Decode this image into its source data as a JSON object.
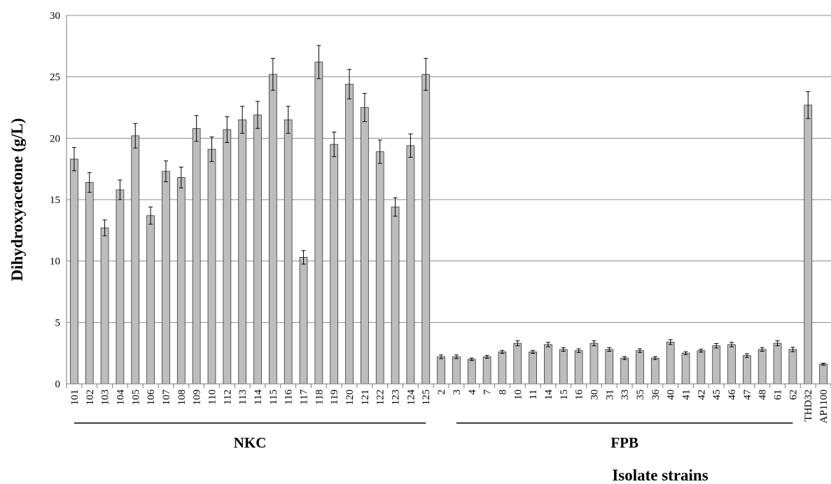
{
  "chart_data": {
    "type": "bar",
    "title": "",
    "ylabel": "Dihydroxyacetone (g/L)",
    "xlabel": "Isolate strains",
    "ylim": [
      0,
      30
    ],
    "yticks": [
      0,
      5,
      10,
      15,
      20,
      25,
      30
    ],
    "grid": true,
    "bar_color": "#bdbdbd",
    "categories": [
      "101",
      "102",
      "103",
      "104",
      "105",
      "106",
      "107",
      "108",
      "109",
      "110",
      "112",
      "113",
      "114",
      "115",
      "116",
      "117",
      "118",
      "119",
      "120",
      "121",
      "122",
      "123",
      "124",
      "125",
      "2",
      "3",
      "4",
      "7",
      "8",
      "10",
      "11",
      "14",
      "15",
      "16",
      "30",
      "31",
      "33",
      "35",
      "36",
      "40",
      "41",
      "42",
      "45",
      "46",
      "47",
      "48",
      "61",
      "62",
      "THD32",
      "AP1100"
    ],
    "values": [
      18.3,
      16.4,
      12.7,
      15.8,
      20.2,
      13.7,
      17.3,
      16.8,
      20.8,
      19.1,
      20.7,
      21.5,
      21.9,
      25.2,
      21.5,
      10.3,
      26.2,
      19.5,
      24.4,
      22.5,
      18.9,
      14.4,
      19.4,
      25.2,
      2.2,
      2.2,
      2.0,
      2.2,
      2.6,
      3.3,
      2.6,
      3.2,
      2.8,
      2.7,
      3.3,
      2.8,
      2.1,
      2.7,
      2.1,
      3.4,
      2.5,
      2.7,
      3.1,
      3.2,
      2.3,
      2.8,
      3.3,
      2.8,
      22.7,
      1.6
    ],
    "errors": [
      0.95,
      0.8,
      0.65,
      0.8,
      1.0,
      0.7,
      0.85,
      0.85,
      1.05,
      1.0,
      1.05,
      1.1,
      1.1,
      1.3,
      1.1,
      0.55,
      1.35,
      1.0,
      1.2,
      1.15,
      0.95,
      0.75,
      0.95,
      1.3,
      0.15,
      0.15,
      0.1,
      0.12,
      0.12,
      0.2,
      0.12,
      0.18,
      0.15,
      0.15,
      0.2,
      0.15,
      0.12,
      0.15,
      0.12,
      0.2,
      0.12,
      0.12,
      0.18,
      0.18,
      0.15,
      0.15,
      0.2,
      0.18,
      1.1,
      0.08
    ],
    "groups": [
      {
        "label": "NKC",
        "first": "101",
        "last": "125"
      },
      {
        "label": "FPB",
        "first": "3",
        "last": "62"
      }
    ]
  }
}
